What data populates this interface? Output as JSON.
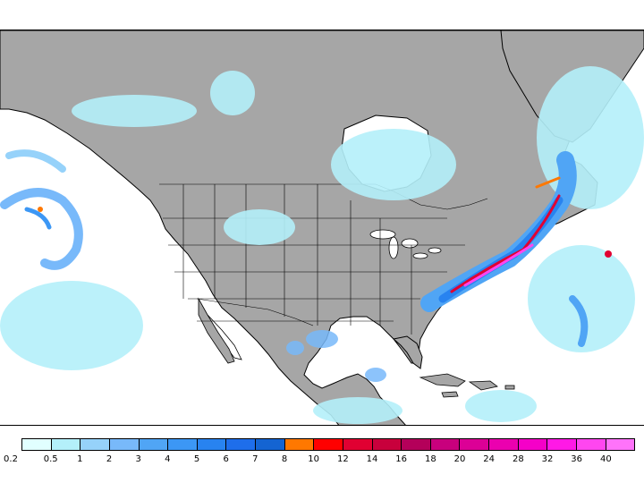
{
  "map": {
    "description_free": true,
    "land_color": "#a6a6a6",
    "ocean_color": "#ffffff",
    "border_color": "#000000"
  },
  "colorbar": {
    "colors": [
      "#e1ffff",
      "#b4f0fa",
      "#96d2fa",
      "#78b9fa",
      "#50a5f5",
      "#3c97f5",
      "#2883f0",
      "#1e6eeb",
      "#1464d2",
      "#ff7800",
      "#ff0000",
      "#e10032",
      "#c8003c",
      "#b4005a",
      "#c8007d",
      "#dc0096",
      "#eb00af",
      "#f500c8",
      "#ff19e6",
      "#ff46f0",
      "#ff73fa"
    ],
    "labels": [
      "0.2",
      "0.5",
      "1",
      "2",
      "3",
      "4",
      "5",
      "6",
      "7",
      "8",
      "10",
      "12",
      "14",
      "16",
      "18",
      "20",
      "24",
      "28",
      "32",
      "36",
      "40"
    ]
  }
}
